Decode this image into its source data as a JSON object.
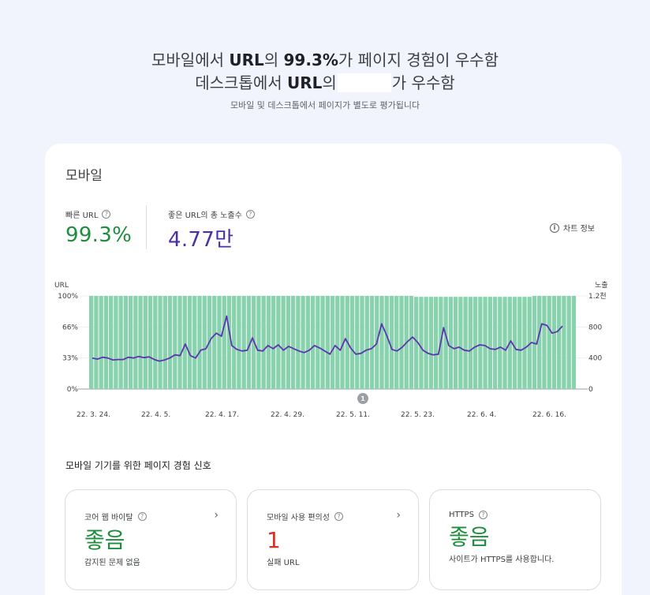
{
  "header": {
    "line1_pre": "모바일에서 ",
    "line1_bold": "URL",
    "line1_mid": "의 ",
    "line1_pct": "99.3%",
    "line1_post": "가 페이지 경험이 우수함",
    "line2_pre": "데스크톱에서 ",
    "line2_bold": "URL",
    "line2_mid": "의",
    "line2_post": "가 우수함",
    "subtitle": "모바일 및 데스크톱에서 페이지가 별도로 평가됩니다"
  },
  "card": {
    "title": "모바일",
    "metric_fast_label": "빠른 URL",
    "metric_fast_value": "99.3%",
    "metric_impr_label": "좋은 URL의 총 노출수",
    "metric_impr_value": "4.77만",
    "chart_info_label": "차트 정보"
  },
  "chart_data": {
    "type": "bar+line",
    "left_axis_title": "URL",
    "right_axis_title": "노출",
    "left_ticks": [
      "0%",
      "33%",
      "66%",
      "100%"
    ],
    "right_ticks": [
      "0",
      "400",
      "800",
      "1.2천"
    ],
    "x_labels": [
      "22. 3. 24.",
      "22. 4. 5.",
      "22. 4. 17.",
      "22. 4. 29.",
      "22. 5. 11.",
      "22. 5. 23.",
      "22. 6. 4.",
      "22. 6. 16."
    ],
    "annotation": "1",
    "bar_color": "#88d3ad",
    "line_color": "#5e35b1",
    "ylim_left": [
      0,
      100
    ],
    "ylim_right": [
      0,
      1200
    ],
    "bars_pct": [
      100,
      100,
      100,
      100,
      100,
      100,
      100,
      100,
      100,
      100,
      100,
      100,
      100,
      100,
      100,
      100,
      100,
      100,
      100,
      100,
      100,
      100,
      100,
      100,
      100,
      100,
      100,
      100,
      100,
      100,
      100,
      100,
      100,
      100,
      100,
      100,
      100,
      100,
      100,
      100,
      100,
      100,
      100,
      100,
      100,
      100,
      100,
      100,
      100,
      100,
      100,
      100,
      100,
      100,
      100,
      100,
      100,
      100,
      100,
      100,
      100,
      100,
      100,
      100,
      100,
      100,
      99,
      99,
      99,
      99,
      99,
      99,
      99,
      99,
      99,
      99,
      99,
      99,
      99,
      99,
      99,
      99,
      99,
      99,
      99,
      99,
      99,
      99,
      99,
      99,
      100,
      100,
      100,
      100,
      100,
      100,
      100,
      100,
      100
    ],
    "impressions": [
      400,
      385,
      410,
      400,
      375,
      380,
      380,
      410,
      400,
      420,
      405,
      415,
      380,
      360,
      375,
      400,
      440,
      430,
      580,
      430,
      400,
      500,
      520,
      650,
      720,
      680,
      940,
      560,
      510,
      490,
      500,
      660,
      500,
      490,
      560,
      520,
      570,
      500,
      550,
      520,
      490,
      470,
      500,
      560,
      530,
      490,
      450,
      560,
      500,
      650,
      530,
      450,
      460,
      500,
      520,
      580,
      840,
      690,
      510,
      490,
      540,
      610,
      670,
      600,
      500,
      460,
      440,
      450,
      790,
      560,
      520,
      540,
      500,
      490,
      540,
      570,
      560,
      520,
      510,
      540,
      500,
      620,
      510,
      500,
      540,
      600,
      580,
      840,
      820,
      720,
      740,
      810
    ]
  },
  "signals": {
    "title": "모바일 기기를 위한 페이지 경험 신호",
    "items": [
      {
        "label": "코어 웹 바이탈",
        "value": "좋음",
        "sub": "감지된 문제 없음"
      },
      {
        "label": "모바일 사용 편의성",
        "value": "1",
        "sub": "실패 URL"
      },
      {
        "label": "HTTPS",
        "value": "좋음",
        "sub": "사이트가 HTTPS를 사용합니다."
      }
    ]
  },
  "icons": {
    "help": "help-circle-icon",
    "info": "info-circle-icon",
    "chevron": "chevron-right-icon"
  }
}
